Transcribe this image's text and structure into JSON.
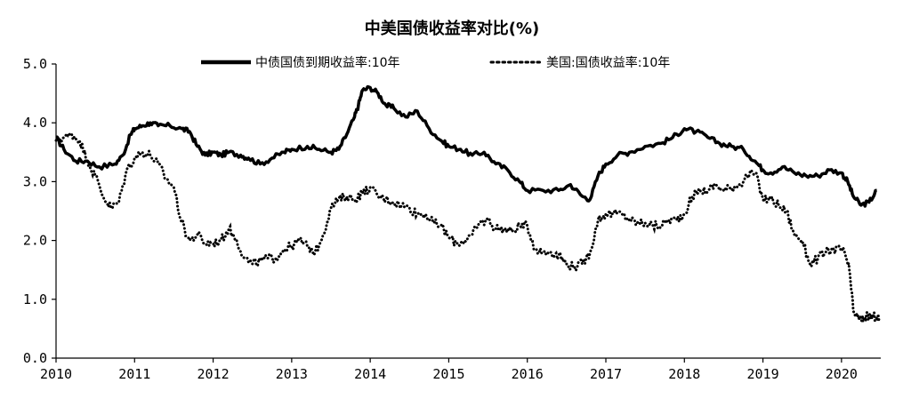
{
  "chart_data": {
    "type": "line",
    "title": "中美国债收益率对比(%)",
    "xlabel": "",
    "ylabel": "",
    "ylim": [
      0,
      5
    ],
    "xlim": [
      2010.0,
      2020.5
    ],
    "y_ticks": [
      "5.0",
      "4.0",
      "3.0",
      "2.0",
      "1.0",
      "0.0"
    ],
    "x_ticks": [
      "2010",
      "2011",
      "2012",
      "2013",
      "2014",
      "2015",
      "2016",
      "2017",
      "2018",
      "2019",
      "2020"
    ],
    "grid": false,
    "legend_position": "top",
    "series": [
      {
        "name": "中债国债到期收益率:10年",
        "style": "solid-thick",
        "color": "#000000",
        "x": [
          2010.0,
          2010.1,
          2010.25,
          2010.4,
          2010.55,
          2010.75,
          2010.85,
          2010.95,
          2011.0,
          2011.1,
          2011.2,
          2011.3,
          2011.45,
          2011.6,
          2011.7,
          2011.8,
          2011.9,
          2012.0,
          2012.1,
          2012.2,
          2012.35,
          2012.45,
          2012.6,
          2012.75,
          2012.9,
          2013.0,
          2013.2,
          2013.35,
          2013.5,
          2013.6,
          2013.7,
          2013.8,
          2013.85,
          2013.9,
          2014.0,
          2014.1,
          2014.2,
          2014.3,
          2014.45,
          2014.6,
          2014.75,
          2014.9,
          2015.0,
          2015.15,
          2015.3,
          2015.45,
          2015.6,
          2015.75,
          2015.9,
          2016.0,
          2016.2,
          2016.4,
          2016.55,
          2016.7,
          2016.8,
          2016.9,
          2017.0,
          2017.15,
          2017.3,
          2017.5,
          2017.7,
          2017.85,
          2018.0,
          2018.15,
          2018.3,
          2018.45,
          2018.6,
          2018.75,
          2018.9,
          2019.0,
          2019.1,
          2019.25,
          2019.4,
          2019.55,
          2019.7,
          2019.85,
          2020.0,
          2020.08,
          2020.15,
          2020.25,
          2020.35,
          2020.45
        ],
        "values": [
          3.75,
          3.55,
          3.35,
          3.35,
          3.25,
          3.3,
          3.45,
          3.8,
          3.9,
          3.95,
          4.0,
          3.95,
          3.95,
          3.9,
          3.85,
          3.6,
          3.45,
          3.5,
          3.45,
          3.5,
          3.45,
          3.4,
          3.3,
          3.4,
          3.5,
          3.55,
          3.6,
          3.55,
          3.5,
          3.55,
          3.8,
          4.1,
          4.3,
          4.55,
          4.6,
          4.5,
          4.3,
          4.25,
          4.1,
          4.2,
          3.9,
          3.7,
          3.6,
          3.55,
          3.45,
          3.5,
          3.3,
          3.2,
          3.0,
          2.85,
          2.85,
          2.85,
          2.95,
          2.75,
          2.7,
          3.1,
          3.3,
          3.45,
          3.5,
          3.6,
          3.65,
          3.75,
          3.9,
          3.85,
          3.75,
          3.65,
          3.6,
          3.55,
          3.35,
          3.2,
          3.15,
          3.25,
          3.15,
          3.1,
          3.1,
          3.2,
          3.15,
          3.0,
          2.75,
          2.6,
          2.65,
          2.85
        ]
      },
      {
        "name": "美国:国债收益率:10年",
        "style": "dotted",
        "color": "#000000",
        "x": [
          2010.0,
          2010.1,
          2010.2,
          2010.3,
          2010.4,
          2010.5,
          2010.6,
          2010.7,
          2010.8,
          2010.9,
          2011.0,
          2011.1,
          2011.2,
          2011.3,
          2011.4,
          2011.5,
          2011.6,
          2011.7,
          2011.8,
          2011.9,
          2012.0,
          2012.1,
          2012.2,
          2012.3,
          2012.4,
          2012.5,
          2012.6,
          2012.7,
          2012.8,
          2012.9,
          2013.0,
          2013.1,
          2013.2,
          2013.3,
          2013.4,
          2013.5,
          2013.6,
          2013.7,
          2013.8,
          2013.9,
          2014.0,
          2014.1,
          2014.2,
          2014.3,
          2014.4,
          2014.5,
          2014.6,
          2014.7,
          2014.8,
          2014.9,
          2015.0,
          2015.1,
          2015.2,
          2015.3,
          2015.4,
          2015.5,
          2015.6,
          2015.7,
          2015.8,
          2015.9,
          2016.0,
          2016.1,
          2016.2,
          2016.3,
          2016.4,
          2016.5,
          2016.6,
          2016.7,
          2016.8,
          2016.9,
          2017.0,
          2017.1,
          2017.2,
          2017.3,
          2017.4,
          2017.5,
          2017.6,
          2017.7,
          2017.8,
          2017.9,
          2018.0,
          2018.1,
          2018.2,
          2018.3,
          2018.4,
          2018.5,
          2018.6,
          2018.7,
          2018.8,
          2018.9,
          2019.0,
          2019.1,
          2019.2,
          2019.3,
          2019.4,
          2019.5,
          2019.6,
          2019.7,
          2019.8,
          2019.9,
          2020.0,
          2020.05,
          2020.1,
          2020.15,
          2020.2,
          2020.25,
          2020.3,
          2020.35,
          2020.4,
          2020.45,
          2020.5
        ],
        "values": [
          3.7,
          3.75,
          3.8,
          3.7,
          3.35,
          3.1,
          2.75,
          2.55,
          2.65,
          3.2,
          3.4,
          3.5,
          3.45,
          3.3,
          3.05,
          2.9,
          2.3,
          2.0,
          2.1,
          1.95,
          1.95,
          2.0,
          2.2,
          2.0,
          1.7,
          1.6,
          1.65,
          1.7,
          1.7,
          1.85,
          1.9,
          2.0,
          1.9,
          1.8,
          2.1,
          2.55,
          2.7,
          2.75,
          2.7,
          2.8,
          2.9,
          2.75,
          2.7,
          2.65,
          2.6,
          2.55,
          2.45,
          2.45,
          2.3,
          2.25,
          2.05,
          1.95,
          2.0,
          2.1,
          2.3,
          2.35,
          2.2,
          2.2,
          2.15,
          2.25,
          2.25,
          1.85,
          1.8,
          1.8,
          1.75,
          1.6,
          1.55,
          1.6,
          1.8,
          2.35,
          2.45,
          2.45,
          2.45,
          2.35,
          2.3,
          2.3,
          2.25,
          2.25,
          2.35,
          2.35,
          2.45,
          2.75,
          2.85,
          2.85,
          2.95,
          2.85,
          2.9,
          2.95,
          3.1,
          3.15,
          2.7,
          2.7,
          2.6,
          2.5,
          2.1,
          2.0,
          1.6,
          1.7,
          1.8,
          1.85,
          1.85,
          1.75,
          1.5,
          0.8,
          0.7,
          0.65,
          0.7,
          0.7,
          0.7,
          0.7,
          0.65
        ]
      }
    ]
  }
}
